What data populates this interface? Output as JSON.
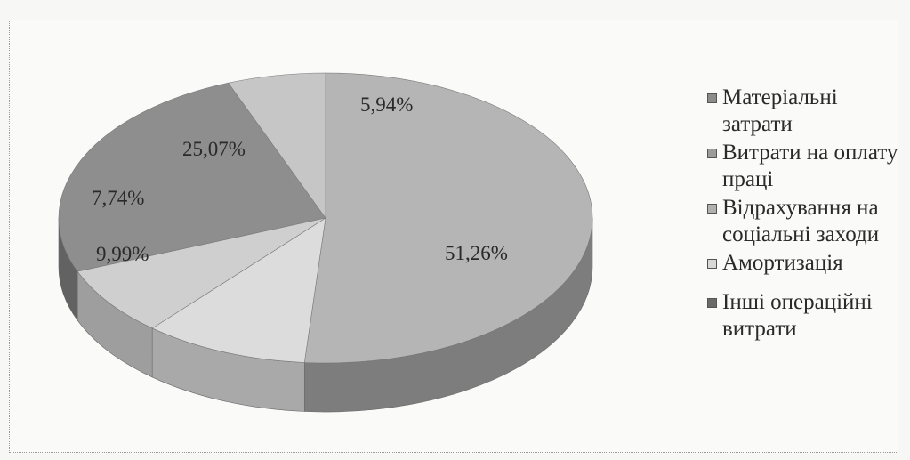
{
  "chart_data": {
    "type": "pie",
    "title": "",
    "slices": [
      {
        "label": "Матеріальні затрати",
        "value": 51.26,
        "value_label": "51,26%",
        "color": "#b5b5b5",
        "side_color": "#7d7d7d"
      },
      {
        "label": "Витрати на оплату праці",
        "value": 9.99,
        "value_label": "9,99%",
        "color": "#dcdcdc",
        "side_color": "#a9a9a9"
      },
      {
        "label": "Відрахування на соціальні заходи",
        "value": 7.74,
        "value_label": "7,74%",
        "color": "#cfcfcf",
        "side_color": "#9e9e9e"
      },
      {
        "label": "Амортизація",
        "value": 25.07,
        "value_label": "25,07%",
        "color": "#8e8e8e",
        "side_color": "#626262"
      },
      {
        "label": "Інші операційні витрати",
        "value": 5.94,
        "value_label": "5,94%",
        "color": "#c6c6c6",
        "side_color": "#979797"
      }
    ],
    "legend": {
      "position": "right",
      "items": [
        {
          "label": "Матеріальні затрати",
          "color": "#8c8c8c"
        },
        {
          "label": "Витрати на оплату праці",
          "color": "#9b9b9b"
        },
        {
          "label": "Відрахування на соціальні заходи",
          "color": "#b0b0b0"
        },
        {
          "label": "Амортизація",
          "color": "#d8d8d8"
        },
        {
          "label": "Інші операційні витрати",
          "color": "#6a6a6a"
        }
      ]
    }
  }
}
